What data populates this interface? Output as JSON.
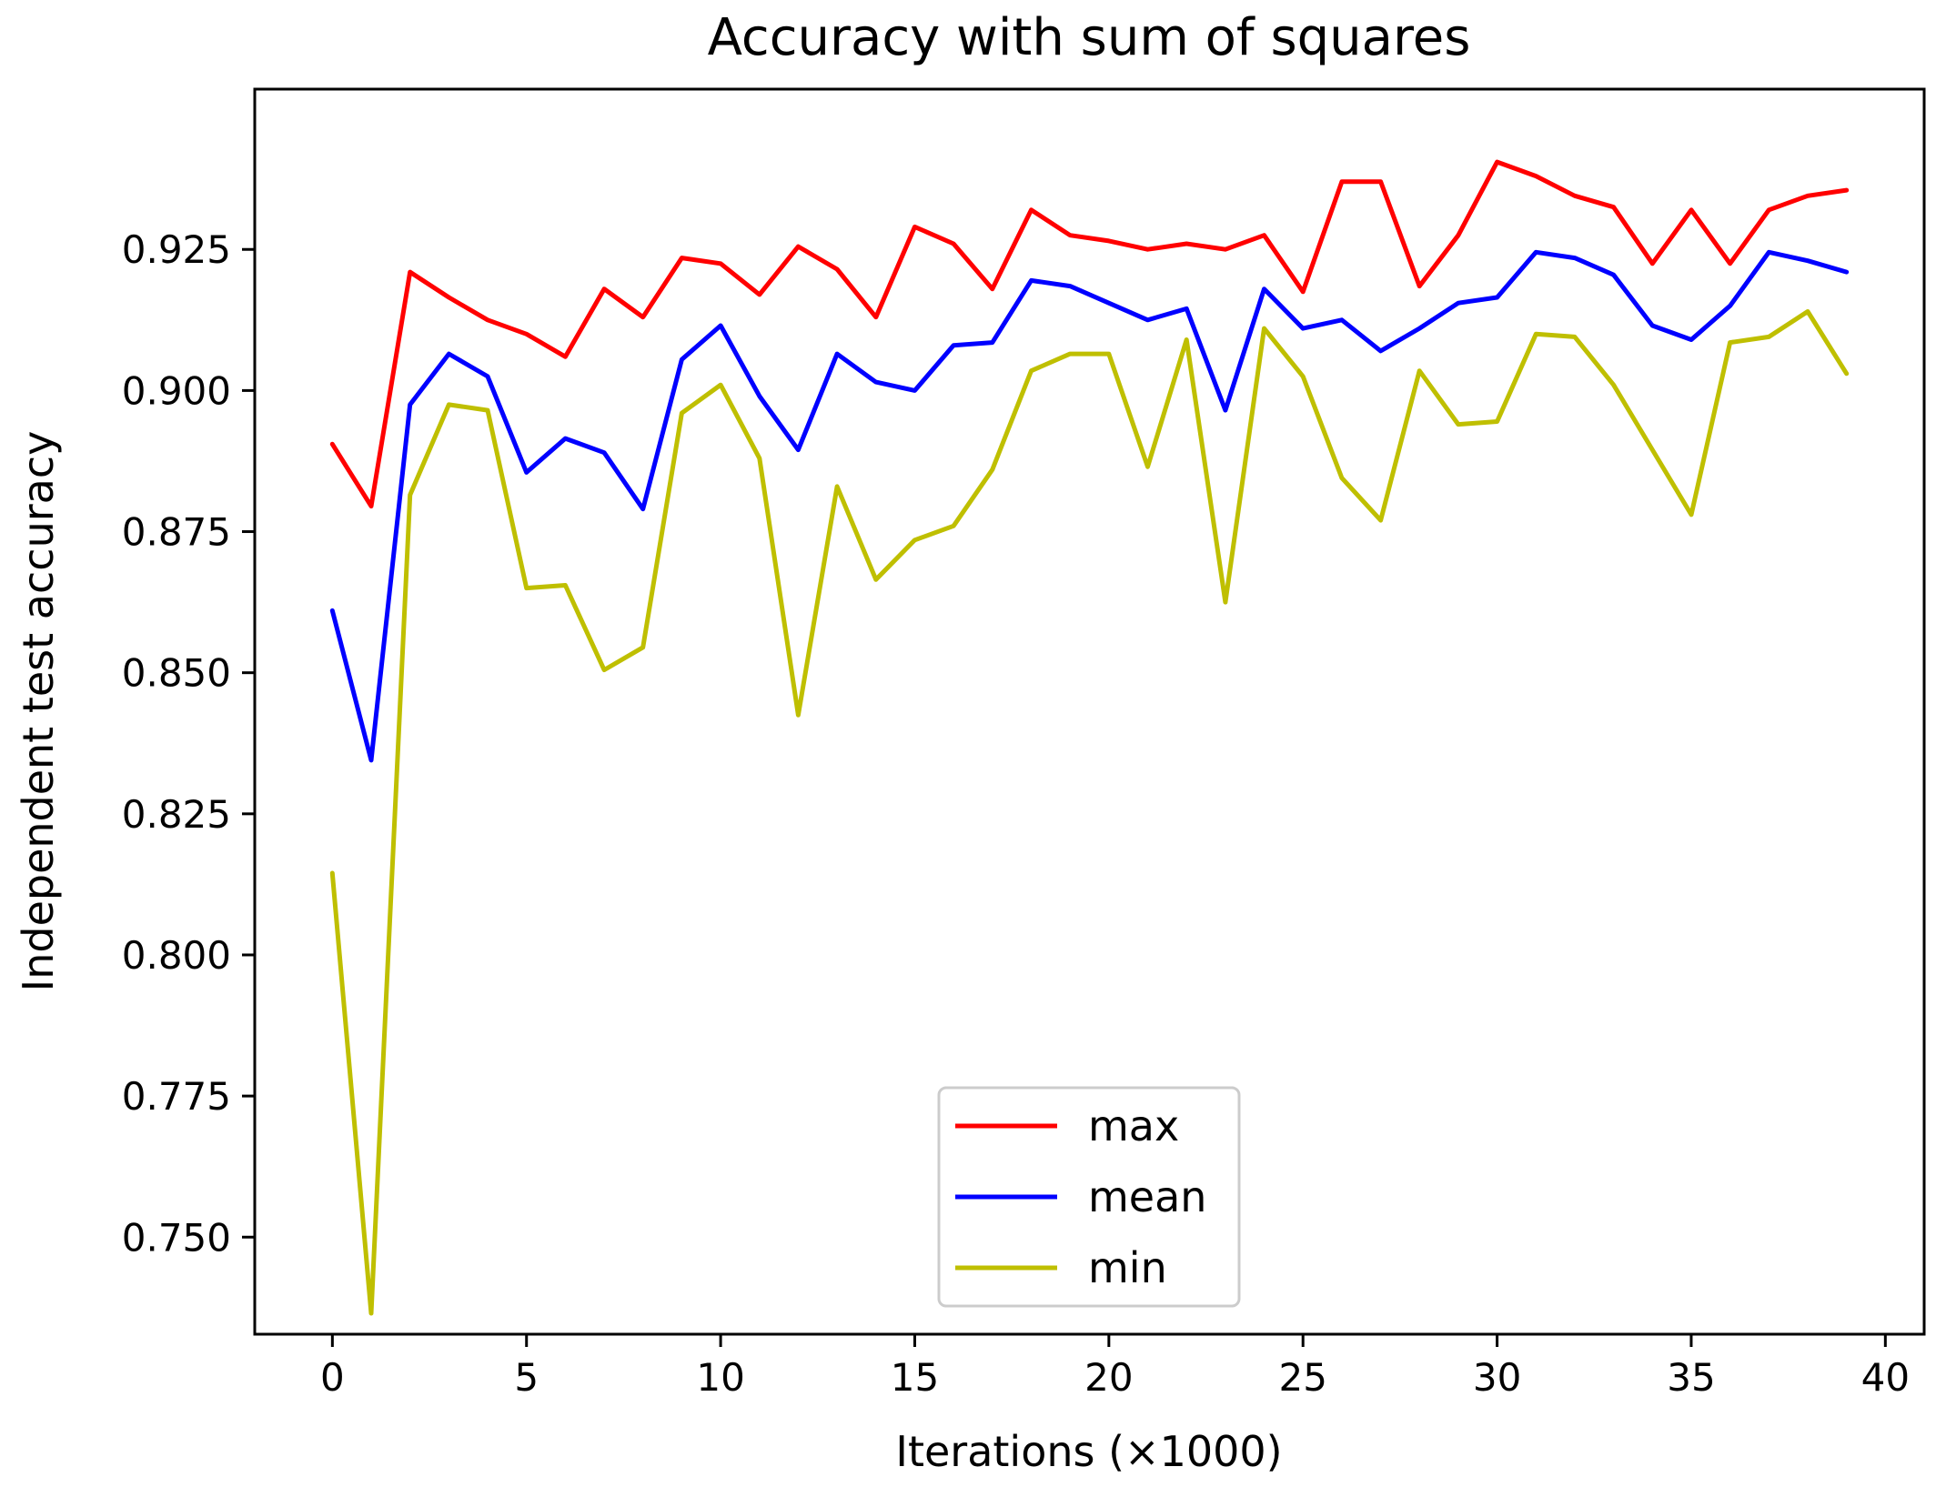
{
  "chart_data": {
    "type": "line",
    "title": "Accuracy with sum of squares",
    "xlabel": "Iterations (×1000)",
    "ylabel": "Independent test accuracy",
    "xlim": [
      -2,
      41
    ],
    "ylim": [
      0.7328,
      0.9534
    ],
    "xticks": [
      0,
      5,
      10,
      15,
      20,
      25,
      30,
      35,
      40
    ],
    "xtick_labels": [
      "0",
      "5",
      "10",
      "15",
      "20",
      "25",
      "30",
      "35",
      "40"
    ],
    "yticks": [
      0.75,
      0.775,
      0.8,
      0.825,
      0.85,
      0.875,
      0.9,
      0.925
    ],
    "ytick_labels": [
      "0.750",
      "0.775",
      "0.800",
      "0.825",
      "0.850",
      "0.875",
      "0.900",
      "0.925"
    ],
    "grid": false,
    "legend_position": "lower-center",
    "x": [
      0,
      1,
      2,
      3,
      4,
      5,
      6,
      7,
      8,
      9,
      10,
      11,
      12,
      13,
      14,
      15,
      16,
      17,
      18,
      19,
      20,
      21,
      22,
      23,
      24,
      25,
      26,
      27,
      28,
      29,
      30,
      31,
      32,
      33,
      34,
      35,
      36,
      37,
      38,
      39
    ],
    "series": [
      {
        "name": "max",
        "color": "#ff0000",
        "values": [
          0.8905,
          0.8795,
          0.921,
          0.9165,
          0.9125,
          0.91,
          0.906,
          0.918,
          0.913,
          0.9235,
          0.9225,
          0.917,
          0.9255,
          0.9215,
          0.913,
          0.929,
          0.926,
          0.918,
          0.932,
          0.9275,
          0.9265,
          0.925,
          0.926,
          0.925,
          0.9275,
          0.9175,
          0.937,
          0.937,
          0.9185,
          0.9275,
          0.9405,
          0.938,
          0.9345,
          0.9325,
          0.9225,
          0.932,
          0.9225,
          0.932,
          0.9345,
          0.9355
        ]
      },
      {
        "name": "mean",
        "color": "#0000ff",
        "values": [
          0.861,
          0.8345,
          0.8975,
          0.9065,
          0.9025,
          0.8855,
          0.8915,
          0.889,
          0.879,
          0.9055,
          0.9115,
          0.899,
          0.8895,
          0.9065,
          0.9015,
          0.9,
          0.908,
          0.9085,
          0.9195,
          0.9185,
          0.9155,
          0.9125,
          0.9145,
          0.8965,
          0.918,
          0.911,
          0.9125,
          0.907,
          0.911,
          0.9155,
          0.9165,
          0.9245,
          0.9235,
          0.9205,
          0.9115,
          0.909,
          0.915,
          0.9245,
          0.923,
          0.921
        ]
      },
      {
        "name": "min",
        "color": "#bfbf00",
        "values": [
          0.8145,
          0.7365,
          0.8815,
          0.8975,
          0.8965,
          0.865,
          0.8655,
          0.8505,
          0.8545,
          0.896,
          0.901,
          0.888,
          0.8425,
          0.883,
          0.8665,
          0.8735,
          0.876,
          0.886,
          0.9035,
          0.9065,
          0.9065,
          0.8865,
          0.909,
          0.8625,
          0.911,
          0.9025,
          0.8845,
          0.877,
          0.9035,
          0.894,
          0.8945,
          0.91,
          0.9095,
          0.901,
          0.8895,
          0.878,
          0.9085,
          0.9095,
          0.914,
          0.903
        ]
      }
    ]
  }
}
